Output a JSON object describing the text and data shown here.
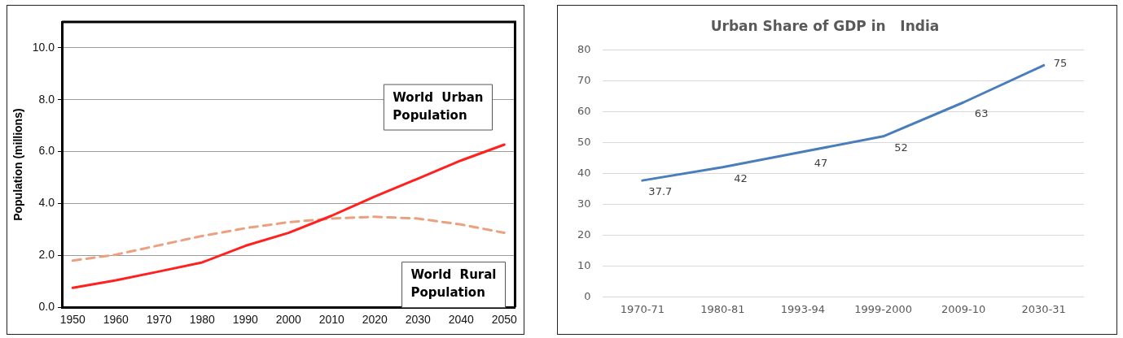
{
  "chart_data": [
    {
      "type": "line",
      "ylabel": "Population (millions)",
      "x": [
        1950,
        1960,
        1970,
        1980,
        1990,
        2000,
        2010,
        2020,
        2030,
        2040,
        2050
      ],
      "series": [
        {
          "name": "World Urban Population",
          "color": "#ff2020",
          "line_style": "solid",
          "values": [
            0.75,
            1.04,
            1.38,
            1.73,
            2.37,
            2.87,
            3.53,
            4.27,
            4.96,
            5.66,
            6.27
          ]
        },
        {
          "name": "World Rural Population",
          "color": "#eba07f",
          "line_style": "dashed",
          "values": [
            1.8,
            2.03,
            2.39,
            2.75,
            3.05,
            3.28,
            3.42,
            3.49,
            3.42,
            3.19,
            2.87
          ]
        }
      ],
      "xlim": [
        1947.5,
        2052.5
      ],
      "xticks": [
        1950,
        1960,
        1970,
        1980,
        1990,
        2000,
        2010,
        2020,
        2030,
        2040,
        2050
      ],
      "ylim": [
        0,
        11
      ],
      "yticks": [
        {
          "value": 0,
          "label": "0.0"
        },
        {
          "value": 2,
          "label": "2.0"
        },
        {
          "value": 4,
          "label": "4.0"
        },
        {
          "value": 6,
          "label": "6.0"
        },
        {
          "value": 8,
          "label": "8.0"
        },
        {
          "value": 10,
          "label": "10.0"
        }
      ],
      "grid": "y",
      "legend": false,
      "marker": "none"
    },
    {
      "type": "line",
      "title": "Urban Share of GDP in   India",
      "categories": [
        "1970-71",
        "1980-81",
        "1993-94",
        "1999-2000",
        "2009-10",
        "2030-31"
      ],
      "values": [
        37.7,
        42,
        47,
        52,
        63,
        75
      ],
      "color": "#4a7ebb",
      "data_labels": true,
      "ylim": [
        0,
        80
      ],
      "yticks": [
        0,
        10,
        20,
        30,
        40,
        50,
        60,
        70,
        80
      ],
      "grid": "y",
      "legend": false,
      "marker": "none"
    }
  ]
}
